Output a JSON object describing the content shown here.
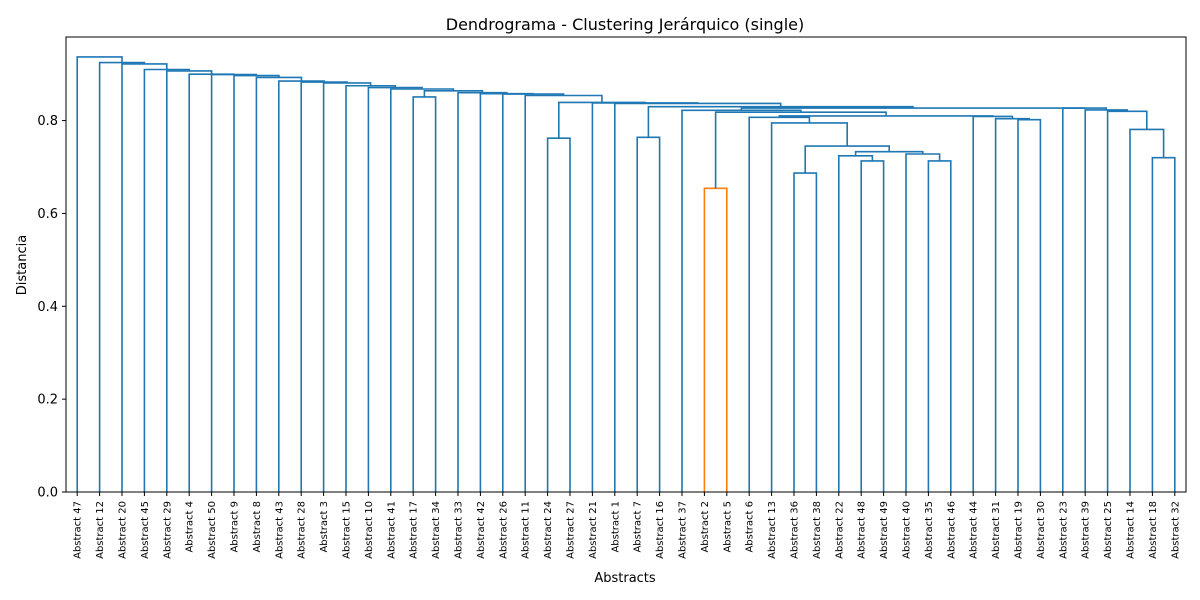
{
  "chart_data": {
    "type": "dendrogram",
    "title": "Dendrograma - Clustering Jerárquico (single)",
    "xlabel": "Abstracts",
    "ylabel": "Distancia",
    "ylim": [
      0,
      0.98
    ],
    "yticks": [
      0.0,
      0.2,
      0.4,
      0.6,
      0.8
    ],
    "ytick_labels": [
      "0.0",
      "0.2",
      "0.4",
      "0.6",
      "0.8"
    ],
    "grid": false,
    "colors": {
      "main": "#1f77b4",
      "cluster": "#ff7f0e"
    },
    "leaves": [
      "Abstract 47",
      "Abstract 12",
      "Abstract 20",
      "Abstract 45",
      "Abstract 29",
      "Abstract 4",
      "Abstract 50",
      "Abstract 9",
      "Abstract 8",
      "Abstract 43",
      "Abstract 28",
      "Abstract 3",
      "Abstract 15",
      "Abstract 10",
      "Abstract 41",
      "Abstract 17",
      "Abstract 34",
      "Abstract 33",
      "Abstract 42",
      "Abstract 26",
      "Abstract 11",
      "Abstract 24",
      "Abstract 27",
      "Abstract 21",
      "Abstract 1",
      "Abstract 7",
      "Abstract 16",
      "Abstract 37",
      "Abstract 2",
      "Abstract 5",
      "Abstract 6",
      "Abstract 13",
      "Abstract 36",
      "Abstract 38",
      "Abstract 22",
      "Abstract 48",
      "Abstract 49",
      "Abstract 40",
      "Abstract 35",
      "Abstract 46",
      "Abstract 44",
      "Abstract 31",
      "Abstract 19",
      "Abstract 30",
      "Abstract 23",
      "Abstract 39",
      "Abstract 25",
      "Abstract 14",
      "Abstract 18",
      "Abstract 32"
    ],
    "merges": [
      {
        "id": "m1",
        "left": "Abstract 2",
        "right": "Abstract 5",
        "height": 0.654,
        "color": "cluster"
      },
      {
        "id": "m2",
        "left": "Abstract 36",
        "right": "Abstract 38",
        "height": 0.687
      },
      {
        "id": "m3",
        "left": "Abstract 35",
        "right": "Abstract 46",
        "height": 0.713
      },
      {
        "id": "m4",
        "left": "Abstract 48",
        "right": "Abstract 49",
        "height": 0.713
      },
      {
        "id": "m5",
        "left": "Abstract 18",
        "right": "Abstract 32",
        "height": 0.72
      },
      {
        "id": "m6",
        "left": "Abstract 22",
        "right": "m4",
        "height": 0.724
      },
      {
        "id": "m7",
        "left": "Abstract 40",
        "right": "m3",
        "height": 0.728
      },
      {
        "id": "m8",
        "left": "m6",
        "right": "m7",
        "height": 0.733
      },
      {
        "id": "m9",
        "left": "m2",
        "right": "m8",
        "height": 0.745
      },
      {
        "id": "m10",
        "left": "Abstract 24",
        "right": "Abstract 27",
        "height": 0.762
      },
      {
        "id": "m11",
        "left": "Abstract 7",
        "right": "Abstract 16",
        "height": 0.764
      },
      {
        "id": "m12",
        "left": "Abstract 14",
        "right": "m5",
        "height": 0.781
      },
      {
        "id": "m13",
        "left": "Abstract 13",
        "right": "m9",
        "height": 0.795
      },
      {
        "id": "m14",
        "left": "Abstract 19",
        "right": "Abstract 30",
        "height": 0.802
      },
      {
        "id": "m15",
        "left": "Abstract 31",
        "right": "m14",
        "height": 0.804
      },
      {
        "id": "m16",
        "left": "Abstract 6",
        "right": "m13",
        "height": 0.807
      },
      {
        "id": "m17",
        "left": "Abstract 44",
        "right": "m15",
        "height": 0.809
      },
      {
        "id": "m18",
        "left": "m16",
        "right": "m17",
        "height": 0.81
      },
      {
        "id": "m19",
        "left": "m1",
        "right": "m18",
        "height": 0.818
      },
      {
        "id": "m20",
        "left": "Abstract 25",
        "right": "m12",
        "height": 0.82
      },
      {
        "id": "m21",
        "left": "Abstract 37",
        "right": "m19",
        "height": 0.822
      },
      {
        "id": "m22",
        "left": "Abstract 39",
        "right": "m20",
        "height": 0.823
      },
      {
        "id": "m23",
        "left": "Abstract 23",
        "right": "m22",
        "height": 0.827
      },
      {
        "id": "m24",
        "left": "m21",
        "right": "m23",
        "height": 0.827
      },
      {
        "id": "m25",
        "left": "m11",
        "right": "m24",
        "height": 0.83
      },
      {
        "id": "m26",
        "left": "Abstract 1",
        "right": "m25",
        "height": 0.837
      },
      {
        "id": "m27",
        "left": "Abstract 21",
        "right": "m26",
        "height": 0.838
      },
      {
        "id": "m28",
        "left": "m10",
        "right": "m27",
        "height": 0.839
      },
      {
        "id": "m29",
        "left": "Abstract 17",
        "right": "Abstract 34",
        "height": 0.851
      },
      {
        "id": "m30",
        "left": "Abstract 11",
        "right": "m28",
        "height": 0.854
      },
      {
        "id": "m31",
        "left": "Abstract 26",
        "right": "m30",
        "height": 0.857
      },
      {
        "id": "m32",
        "left": "Abstract 42",
        "right": "m31",
        "height": 0.858
      },
      {
        "id": "m33",
        "left": "Abstract 33",
        "right": "m32",
        "height": 0.86
      },
      {
        "id": "m34",
        "left": "m29",
        "right": "m33",
        "height": 0.864
      },
      {
        "id": "m35",
        "left": "Abstract 41",
        "right": "m34",
        "height": 0.868
      },
      {
        "id": "m36",
        "left": "Abstract 10",
        "right": "m35",
        "height": 0.871
      },
      {
        "id": "m37",
        "left": "Abstract 15",
        "right": "m36",
        "height": 0.875
      },
      {
        "id": "m38",
        "left": "Abstract 3",
        "right": "m37",
        "height": 0.881
      },
      {
        "id": "m39",
        "left": "Abstract 28",
        "right": "m38",
        "height": 0.883
      },
      {
        "id": "m40",
        "left": "Abstract 43",
        "right": "m39",
        "height": 0.885
      },
      {
        "id": "m41",
        "left": "Abstract 8",
        "right": "m40",
        "height": 0.893
      },
      {
        "id": "m42",
        "left": "Abstract 9",
        "right": "m41",
        "height": 0.897
      },
      {
        "id": "m43",
        "left": "Abstract 50",
        "right": "m42",
        "height": 0.899
      },
      {
        "id": "m44",
        "left": "Abstract 4",
        "right": "m43",
        "height": 0.9
      },
      {
        "id": "m45",
        "left": "Abstract 29",
        "right": "m44",
        "height": 0.907
      },
      {
        "id": "m46",
        "left": "Abstract 45",
        "right": "m45",
        "height": 0.91
      },
      {
        "id": "m47",
        "left": "Abstract 20",
        "right": "m46",
        "height": 0.922
      },
      {
        "id": "m48",
        "left": "Abstract 12",
        "right": "m47",
        "height": 0.925
      },
      {
        "id": "m49",
        "left": "Abstract 47",
        "right": "m48",
        "height": 0.937
      }
    ]
  }
}
